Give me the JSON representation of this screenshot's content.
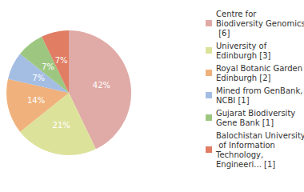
{
  "chart_data": {
    "type": "pie",
    "categories": [
      "Centre for Biodiversity Genomics [6]",
      "University of Edinburgh [3]",
      "Royal Botanic Garden Edinburgh [2]",
      "Mined from GenBank, NCBI [1]",
      "Gujarat Biodiversity Gene Bank [1]",
      "Balochistan University of Information Technology, Engineeri... [1]"
    ],
    "values": [
      42,
      21,
      14,
      7,
      7,
      7
    ],
    "value_labels": [
      "42%",
      "21%",
      "14%",
      "7%",
      "7%",
      "7%"
    ],
    "colors": [
      "#e0aaa6",
      "#dde29b",
      "#f0b17c",
      "#a4bde3",
      "#9dc780",
      "#e07d63"
    ],
    "data_labels": true,
    "legend": "right"
  }
}
